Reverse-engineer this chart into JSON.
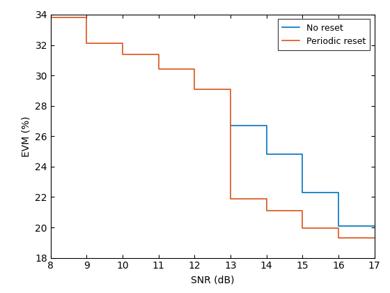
{
  "title": "",
  "xlabel": "SNR (dB)",
  "ylabel": "EVM (%)",
  "xlim": [
    8,
    17
  ],
  "ylim": [
    18,
    34
  ],
  "xticks": [
    8,
    9,
    10,
    11,
    12,
    13,
    14,
    15,
    16,
    17
  ],
  "yticks": [
    18,
    20,
    22,
    24,
    26,
    28,
    30,
    32,
    34
  ],
  "no_reset": {
    "x": [
      13,
      14,
      15,
      16,
      17
    ],
    "y": [
      26.7,
      24.8,
      22.3,
      20.1,
      20.1
    ],
    "color": "#0072BD",
    "label": "No reset",
    "linewidth": 1.2
  },
  "periodic_reset": {
    "x": [
      8,
      9,
      10,
      11,
      12,
      13,
      14,
      15,
      16,
      17
    ],
    "y": [
      33.8,
      32.1,
      31.4,
      30.4,
      29.1,
      21.9,
      21.1,
      19.95,
      19.3,
      19.3
    ],
    "color": "#D95319",
    "label": "Periodic reset",
    "linewidth": 1.2
  },
  "legend_loc": "upper right",
  "figsize": [
    5.6,
    4.2
  ],
  "dpi": 100,
  "background_color": "#ffffff"
}
